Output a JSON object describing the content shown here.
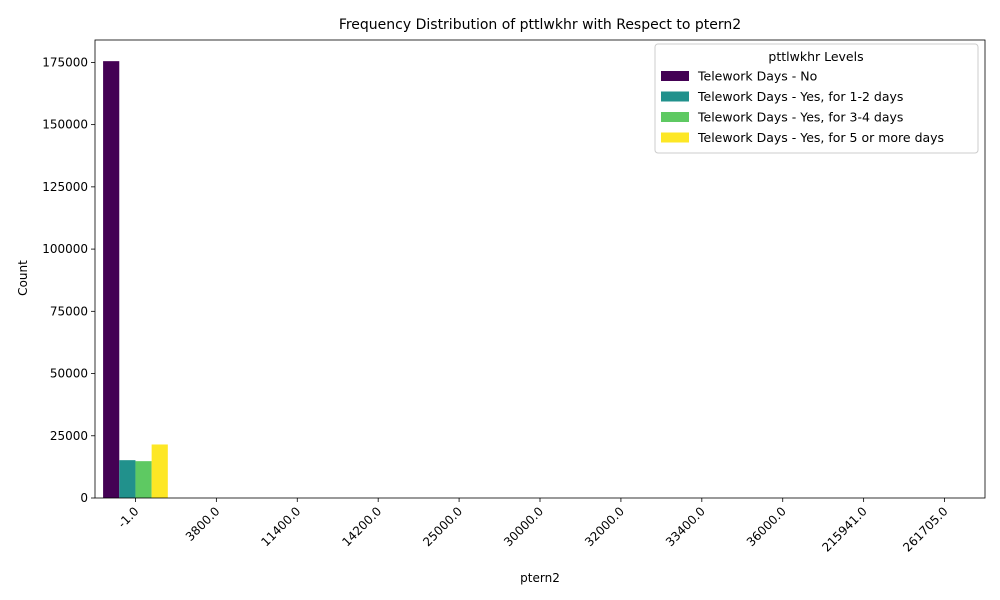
{
  "chart_data": {
    "type": "bar",
    "title": "Frequency Distribution of pttlwkhr with Respect to ptern2",
    "xlabel": "ptern2",
    "ylabel": "Count",
    "categories": [
      "-1.0",
      "3800.0",
      "11400.0",
      "14200.0",
      "25000.0",
      "30000.0",
      "32000.0",
      "33400.0",
      "36000.0",
      "215941.0",
      "261705.0"
    ],
    "ylim": [
      0,
      184000
    ],
    "yticks": [
      0,
      25000,
      50000,
      75000,
      100000,
      125000,
      150000,
      175000
    ],
    "grid": false,
    "legend": {
      "title": "pttlwkhr Levels",
      "placement": "top-right"
    },
    "series": [
      {
        "name": "Telework Days - No",
        "color": "#440154",
        "values": [
          175500,
          0,
          0,
          0,
          0,
          0,
          0,
          0,
          0,
          0,
          0
        ]
      },
      {
        "name": "Telework Days - Yes, for 1-2 days",
        "color": "#21918c",
        "values": [
          15200,
          0,
          0,
          0,
          0,
          0,
          0,
          0,
          0,
          0,
          0
        ]
      },
      {
        "name": "Telework Days - Yes, for 3-4 days",
        "color": "#5ec962",
        "values": [
          14800,
          0,
          0,
          0,
          0,
          0,
          0,
          0,
          0,
          0,
          0
        ]
      },
      {
        "name": "Telework Days - Yes, for 5 or more days",
        "color": "#fde725",
        "values": [
          21500,
          0,
          0,
          0,
          0,
          0,
          0,
          0,
          0,
          0,
          0
        ]
      }
    ]
  }
}
